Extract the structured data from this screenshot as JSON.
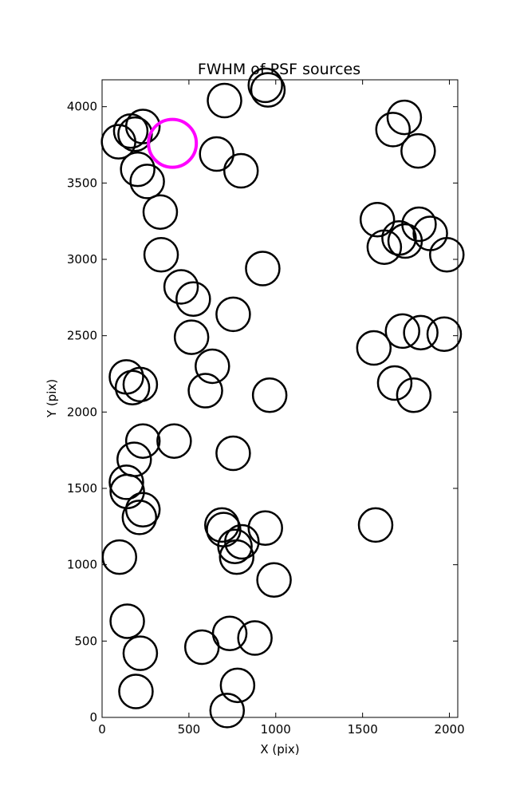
{
  "chart_data": {
    "type": "scatter",
    "title": "FWHM of PSF sources",
    "xlabel": "X (pix)",
    "ylabel": "Y (pix)",
    "xlim": [
      0,
      2048
    ],
    "ylim": [
      0,
      4176
    ],
    "xticks": [
      0,
      500,
      1000,
      1500,
      2000
    ],
    "yticks": [
      0,
      500,
      1000,
      1500,
      2000,
      2500,
      3000,
      3500,
      4000
    ],
    "grid": false,
    "marker": "open-circle",
    "series": [
      {
        "color": "#000000",
        "points": [
          [
            705,
            4040
          ],
          [
            940,
            4140
          ],
          [
            955,
            4110
          ],
          [
            95,
            3770
          ],
          [
            165,
            3840
          ],
          [
            190,
            3820
          ],
          [
            235,
            3870
          ],
          [
            660,
            3690
          ],
          [
            800,
            3580
          ],
          [
            205,
            3590
          ],
          [
            260,
            3510
          ],
          [
            335,
            3310
          ],
          [
            340,
            3030
          ],
          [
            455,
            2820
          ],
          [
            525,
            2740
          ],
          [
            925,
            2940
          ],
          [
            755,
            2640
          ],
          [
            515,
            2490
          ],
          [
            635,
            2300
          ],
          [
            595,
            2140
          ],
          [
            140,
            2230
          ],
          [
            175,
            2160
          ],
          [
            220,
            2180
          ],
          [
            965,
            2110
          ],
          [
            415,
            1810
          ],
          [
            235,
            1810
          ],
          [
            185,
            1690
          ],
          [
            755,
            1730
          ],
          [
            140,
            1540
          ],
          [
            145,
            1480
          ],
          [
            235,
            1360
          ],
          [
            215,
            1310
          ],
          [
            690,
            1260
          ],
          [
            700,
            1230
          ],
          [
            765,
            1120
          ],
          [
            775,
            1050
          ],
          [
            805,
            1150
          ],
          [
            940,
            1240
          ],
          [
            990,
            900
          ],
          [
            100,
            1050
          ],
          [
            145,
            630
          ],
          [
            220,
            420
          ],
          [
            195,
            170
          ],
          [
            575,
            460
          ],
          [
            735,
            550
          ],
          [
            880,
            520
          ],
          [
            780,
            210
          ],
          [
            720,
            45
          ],
          [
            1740,
            3930
          ],
          [
            1675,
            3850
          ],
          [
            1820,
            3710
          ],
          [
            1585,
            3260
          ],
          [
            1625,
            3080
          ],
          [
            1710,
            3140
          ],
          [
            1745,
            3120
          ],
          [
            1825,
            3230
          ],
          [
            1890,
            3170
          ],
          [
            1985,
            3030
          ],
          [
            1565,
            2420
          ],
          [
            1730,
            2530
          ],
          [
            1835,
            2520
          ],
          [
            1970,
            2510
          ],
          [
            1685,
            2190
          ],
          [
            1795,
            2110
          ],
          [
            1575,
            1260
          ]
        ]
      },
      {
        "color": "#ff00ff",
        "points": [
          [
            405,
            3760
          ]
        ]
      }
    ]
  }
}
